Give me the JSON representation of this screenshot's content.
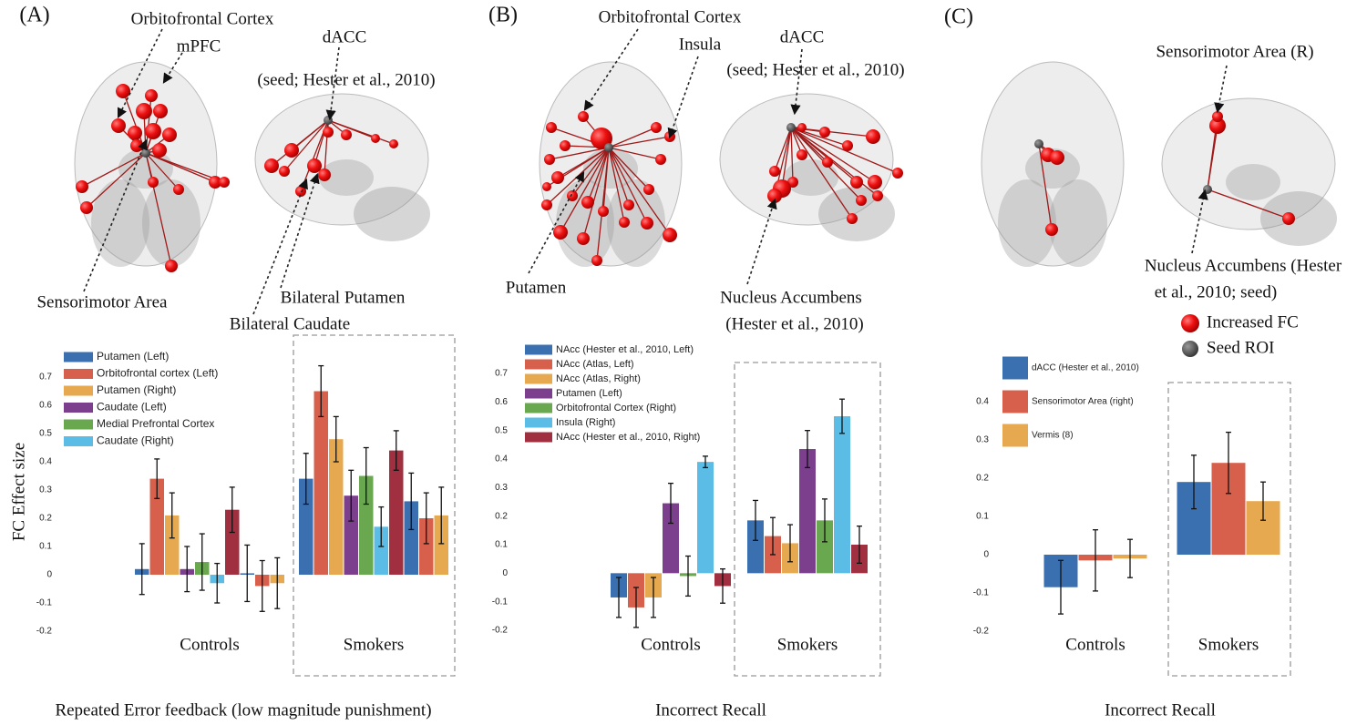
{
  "panels": [
    {
      "label": "(A)",
      "annotations": [
        "Orbitofrontal Cortex",
        "mPFC",
        "dACC",
        "(seed; Hester et al., 2010)",
        "Sensorimotor Area",
        "Bilateral Putamen",
        "Bilateral Caudate"
      ]
    },
    {
      "label": "(B)",
      "annotations": [
        "Orbitofrontal Cortex",
        "Insula",
        "dACC",
        "(seed; Hester et al., 2010)",
        "Putamen",
        "Nucleus Accumbens",
        "(Hester et al., 2010)"
      ]
    },
    {
      "label": "(C)",
      "annotations": [
        "Sensorimotor Area (R)",
        "Nucleus Accumbens (Hester",
        "et al., 2010; seed)"
      ],
      "legend": [
        "Increased FC",
        "Seed ROI"
      ]
    }
  ],
  "chart_data": [
    {
      "type": "bar",
      "caption": "Repeated Error feedback (low magnitude punishment)",
      "ylabel": "FC Effect size",
      "categories": [
        "Controls",
        "Smokers"
      ],
      "ylim": [
        -0.2,
        0.8
      ],
      "yticks": [
        -0.2,
        -0.1,
        0,
        0.1,
        0.2,
        0.3,
        0.4,
        0.5,
        0.6,
        0.7
      ],
      "series": [
        {
          "name": "Putamen (Left)",
          "color": "#3a6fb0",
          "values": [
            0.02,
            0.34
          ],
          "errors": [
            0.09,
            0.09
          ]
        },
        {
          "name": "Orbitofrontal cortex (Left)",
          "color": "#d7604d",
          "values": [
            0.34,
            0.65
          ],
          "errors": [
            0.07,
            0.09
          ]
        },
        {
          "name": "Putamen (Right)",
          "color": "#e7a94f",
          "values": [
            0.21,
            0.48
          ],
          "errors": [
            0.08,
            0.08
          ]
        },
        {
          "name": "Caudate (Left)",
          "color": "#7b3f8e",
          "values": [
            0.02,
            0.28
          ],
          "errors": [
            0.08,
            0.09
          ]
        },
        {
          "name": "Medial Prefrontal Cortex",
          "color": "#6aa84f",
          "values": [
            0.045,
            0.35
          ],
          "errors": [
            0.1,
            0.1
          ]
        },
        {
          "name": "Caudate (Right)",
          "color": "#5bbde6",
          "values": [
            -0.03,
            0.17
          ],
          "errors": [
            0.07,
            0.07
          ]
        },
        {
          "color": "#a0303f",
          "values": [
            0.23,
            0.44
          ],
          "errors": [
            0.08,
            0.07
          ]
        },
        {
          "color": "#3a6fb0",
          "values": [
            0.005,
            0.26
          ],
          "errors": [
            0.1,
            0.1
          ]
        },
        {
          "color": "#d7604d",
          "values": [
            -0.04,
            0.2
          ],
          "errors": [
            0.09,
            0.09
          ]
        },
        {
          "color": "#e7a94f",
          "values": [
            -0.03,
            0.21
          ],
          "errors": [
            0.09,
            0.1
          ]
        }
      ]
    },
    {
      "type": "bar",
      "caption": "Incorrect Recall",
      "categories": [
        "Controls",
        "Smokers"
      ],
      "ylim": [
        -0.2,
        0.7
      ],
      "yticks": [
        -0.2,
        -0.1,
        0,
        0.1,
        0.2,
        0.3,
        0.4,
        0.5,
        0.6,
        0.7
      ],
      "series": [
        {
          "name": "NAcc (Hester et al., 2010, Left)",
          "color": "#3a6fb0",
          "values": [
            -0.085,
            0.185
          ],
          "errors": [
            0.07,
            0.07
          ]
        },
        {
          "name": "NAcc (Atlas, Left)",
          "color": "#d7604d",
          "values": [
            -0.12,
            0.13
          ],
          "errors": [
            0.07,
            0.065
          ]
        },
        {
          "name": "NAcc (Atlas, Right)",
          "color": "#e7a94f",
          "values": [
            -0.085,
            0.105
          ],
          "errors": [
            0.07,
            0.065
          ]
        },
        {
          "name": "Putamen (Left)",
          "color": "#7b3f8e",
          "values": [
            0.245,
            0.435
          ],
          "errors": [
            0.07,
            0.065
          ]
        },
        {
          "name": "Orbitofrontal Cortex (Right)",
          "color": "#6aa84f",
          "values": [
            -0.01,
            0.185
          ],
          "errors": [
            0.07,
            0.075
          ]
        },
        {
          "name": "Insula (Right)",
          "color": "#5bbde6",
          "values": [
            0.39,
            0.55
          ],
          "errors": [
            0.02,
            0.06
          ]
        },
        {
          "name": "NAcc (Hester et al., 2010, Right)",
          "color": "#a0303f",
          "values": [
            -0.045,
            0.1
          ],
          "errors": [
            0.06,
            0.065
          ]
        }
      ]
    },
    {
      "type": "bar",
      "caption": "Incorrect Recall",
      "categories": [
        "Controls",
        "Smokers"
      ],
      "ylim": [
        -0.2,
        0.4
      ],
      "yticks": [
        -0.2,
        -0.1,
        0,
        0.1,
        0.2,
        0.3,
        0.4
      ],
      "series": [
        {
          "name": "dACC (Hester et al., 2010)",
          "color": "#3a6fb0",
          "values": [
            -0.085,
            0.19
          ],
          "errors": [
            0.07,
            0.07
          ]
        },
        {
          "name": "Sensorimotor Area (right)",
          "color": "#d7604d",
          "values": [
            -0.015,
            0.24
          ],
          "errors": [
            0.08,
            0.08
          ]
        },
        {
          "name": "Vermis (8)",
          "color": "#e7a94f",
          "values": [
            -0.01,
            0.14
          ],
          "errors": [
            0.05,
            0.05
          ]
        }
      ]
    }
  ]
}
